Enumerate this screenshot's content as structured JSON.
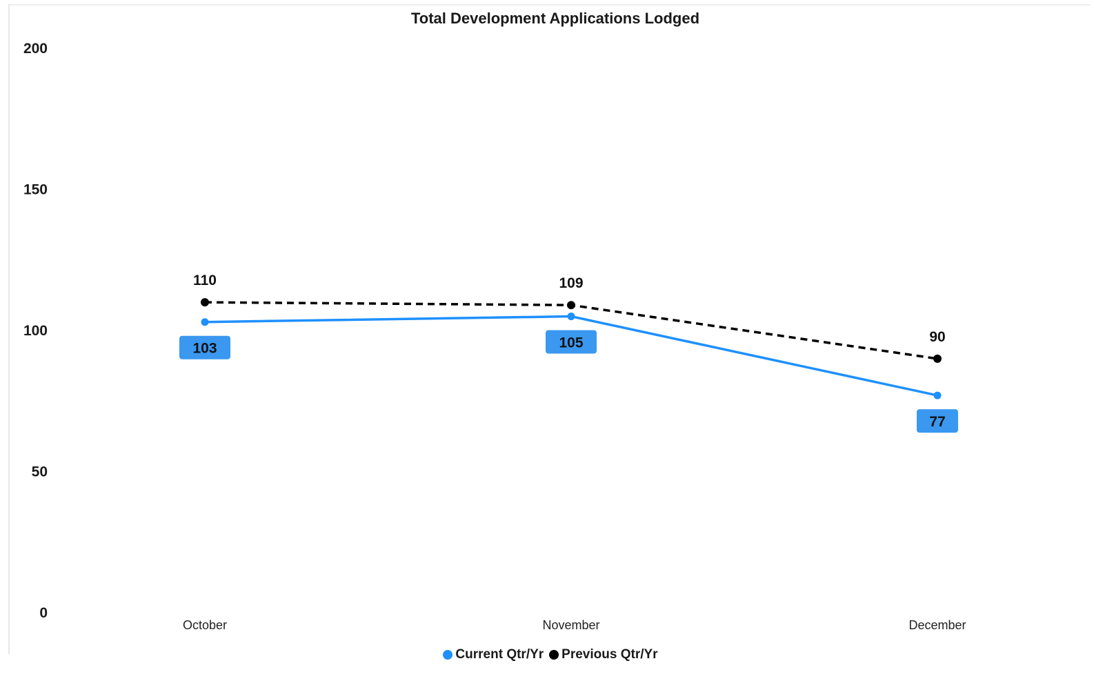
{
  "chart_data": {
    "type": "line",
    "title": "Total Development Applications Lodged",
    "xlabel": "",
    "ylabel": "",
    "categories": [
      "October",
      "November",
      "December"
    ],
    "ylim": [
      0,
      200
    ],
    "yticks": [
      0,
      50,
      100,
      150,
      200
    ],
    "grid": false,
    "legend_position": "bottom",
    "series": [
      {
        "name": "Current Qtr/Yr",
        "values": [
          103,
          105,
          77
        ],
        "color": "#1e90ff",
        "style": "solid",
        "label_style": "boxed"
      },
      {
        "name": "Previous Qtr/Yr",
        "values": [
          110,
          109,
          90
        ],
        "color": "#000000",
        "style": "dashed",
        "label_style": "plain"
      }
    ]
  }
}
